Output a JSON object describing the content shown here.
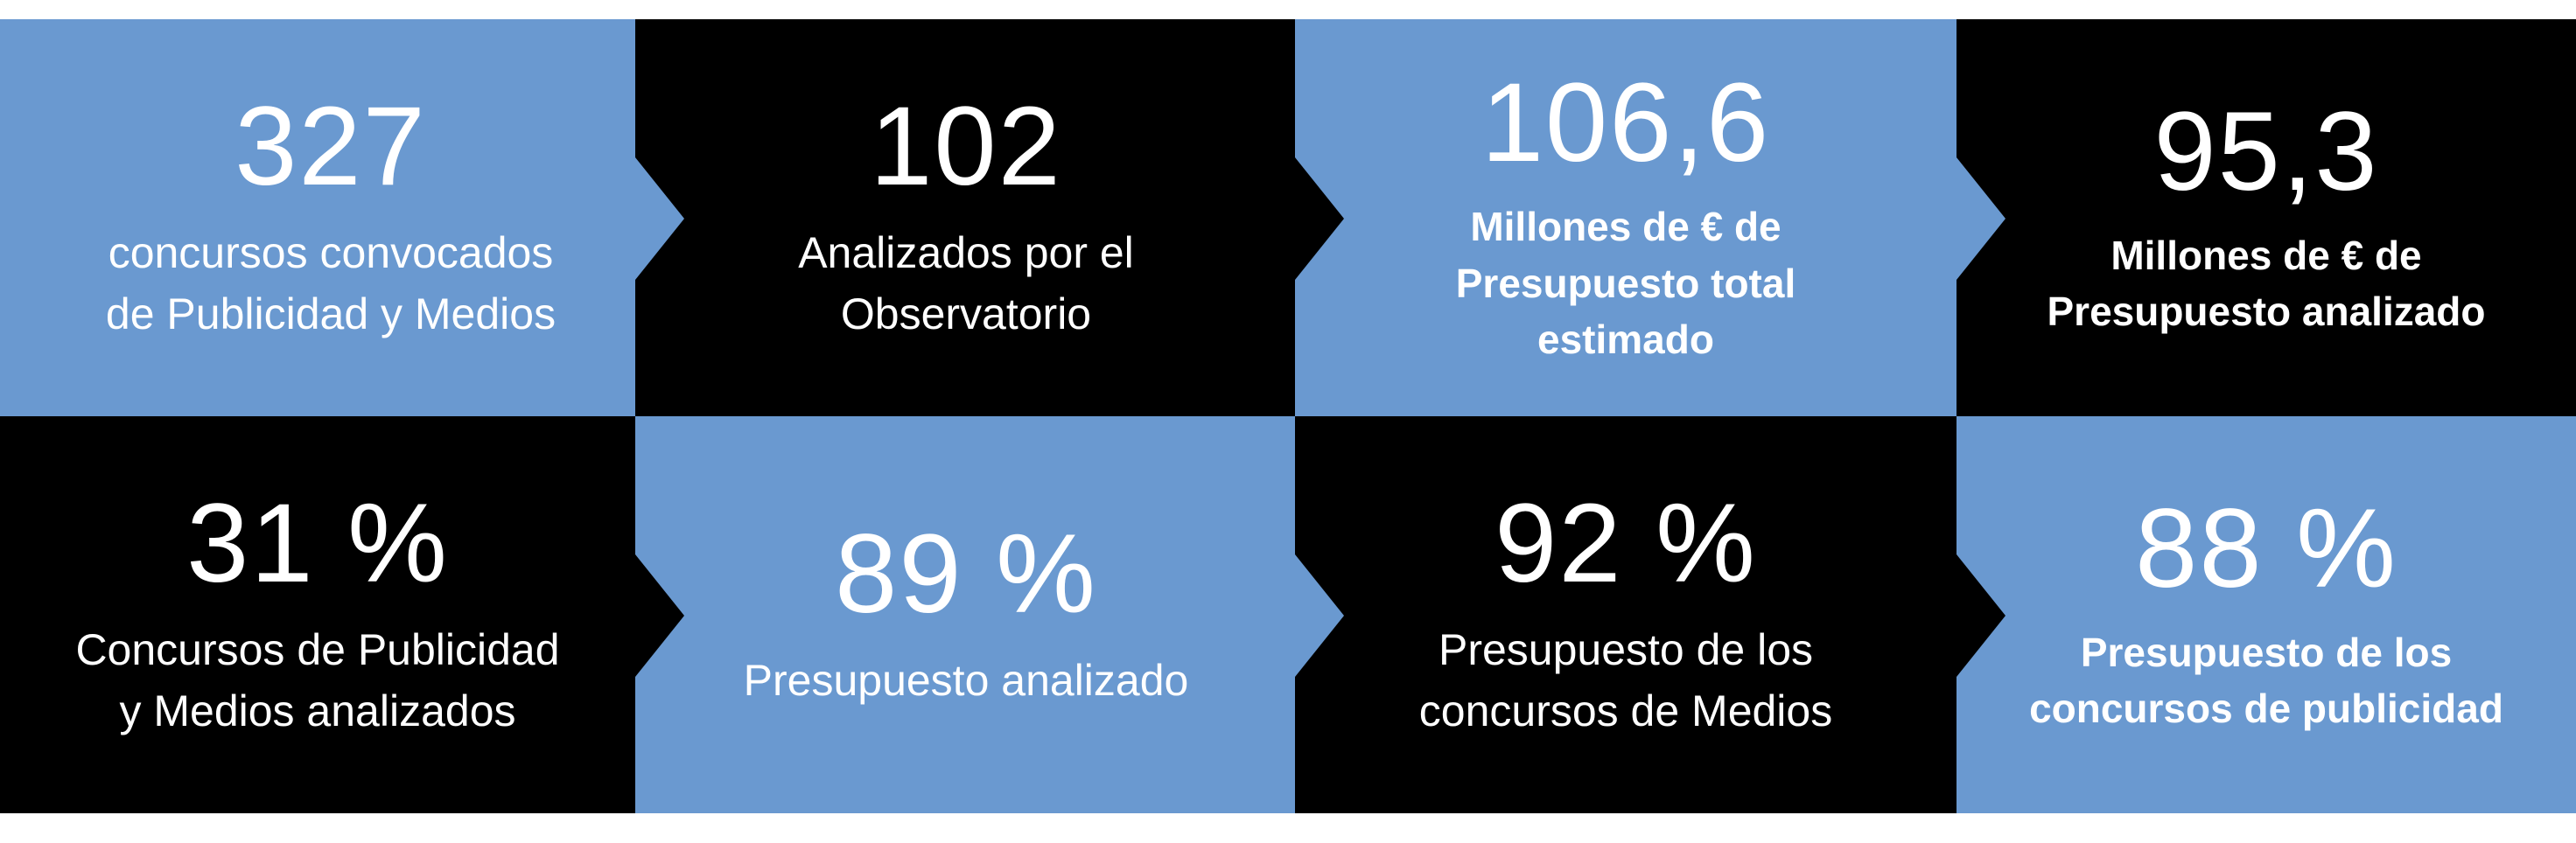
{
  "colors": {
    "blue": "#6a99d0",
    "black": "#000000",
    "text": "#ffffff"
  },
  "tiles": [
    {
      "value": "327",
      "label": "concursos convocados\nde Publicidad y Medios"
    },
    {
      "value": "102",
      "label": "Analizados por el\nObservatorio"
    },
    {
      "value": "106,6",
      "label": "Millones de € de\nPresupuesto total\nestimado"
    },
    {
      "value": "95,3",
      "label": "Millones de € de\nPresupuesto analizado"
    },
    {
      "value": "31 %",
      "label": "Concursos de Publicidad\ny Medios analizados"
    },
    {
      "value": "89 %",
      "label": "Presupuesto analizado"
    },
    {
      "value": "92 %",
      "label": "Presupuesto de los\nconcursos de Medios"
    },
    {
      "value": "88 %",
      "label": "Presupuesto de los\nconcursos de publicidad"
    }
  ]
}
